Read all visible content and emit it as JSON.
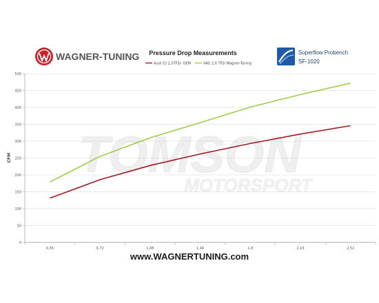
{
  "header": {
    "brand_logo_text": "WAGNER-TUNING",
    "bench_line1": "Superflow Probench",
    "bench_line2": "SF-1020"
  },
  "watermark": {
    "line1": "TOMSON",
    "line2": "MOTORSPORT"
  },
  "footer": {
    "url": "www.WAGNERTUNING.com"
  },
  "colors": {
    "oem": "#a01a24",
    "wagner": "#9acd4a",
    "grid": "#d4d4d4",
    "axis": "#9a9a9a",
    "brand_red": "#c0282e",
    "bench_blue": "#1f5aa6"
  },
  "chart_data": {
    "type": "line",
    "title": "Pressure Drop Measurements",
    "xlabel": "",
    "ylabel": "CFM",
    "categories": [
      "0,36",
      "0,72",
      "1,08",
      "1,44",
      "1,8",
      "2,16",
      "2,52"
    ],
    "x": [
      0.36,
      0.72,
      1.08,
      1.44,
      1.8,
      2.16,
      2.52
    ],
    "ylim": [
      0,
      500
    ],
    "yticks": [
      "0",
      "50",
      "100",
      "150",
      "200",
      "250",
      "300",
      "350",
      "400",
      "450",
      "500"
    ],
    "grid": true,
    "legend_position": "top",
    "series": [
      {
        "name": "Audi S3 2,0TFSI- OEM",
        "values": [
          131,
          186,
          228,
          262,
          293,
          321,
          346
        ]
      },
      {
        "name": "VAG 2,0 TFSI  Wagner-Tuning",
        "values": [
          179,
          255,
          310,
          355,
          401,
          438,
          472
        ]
      }
    ]
  }
}
